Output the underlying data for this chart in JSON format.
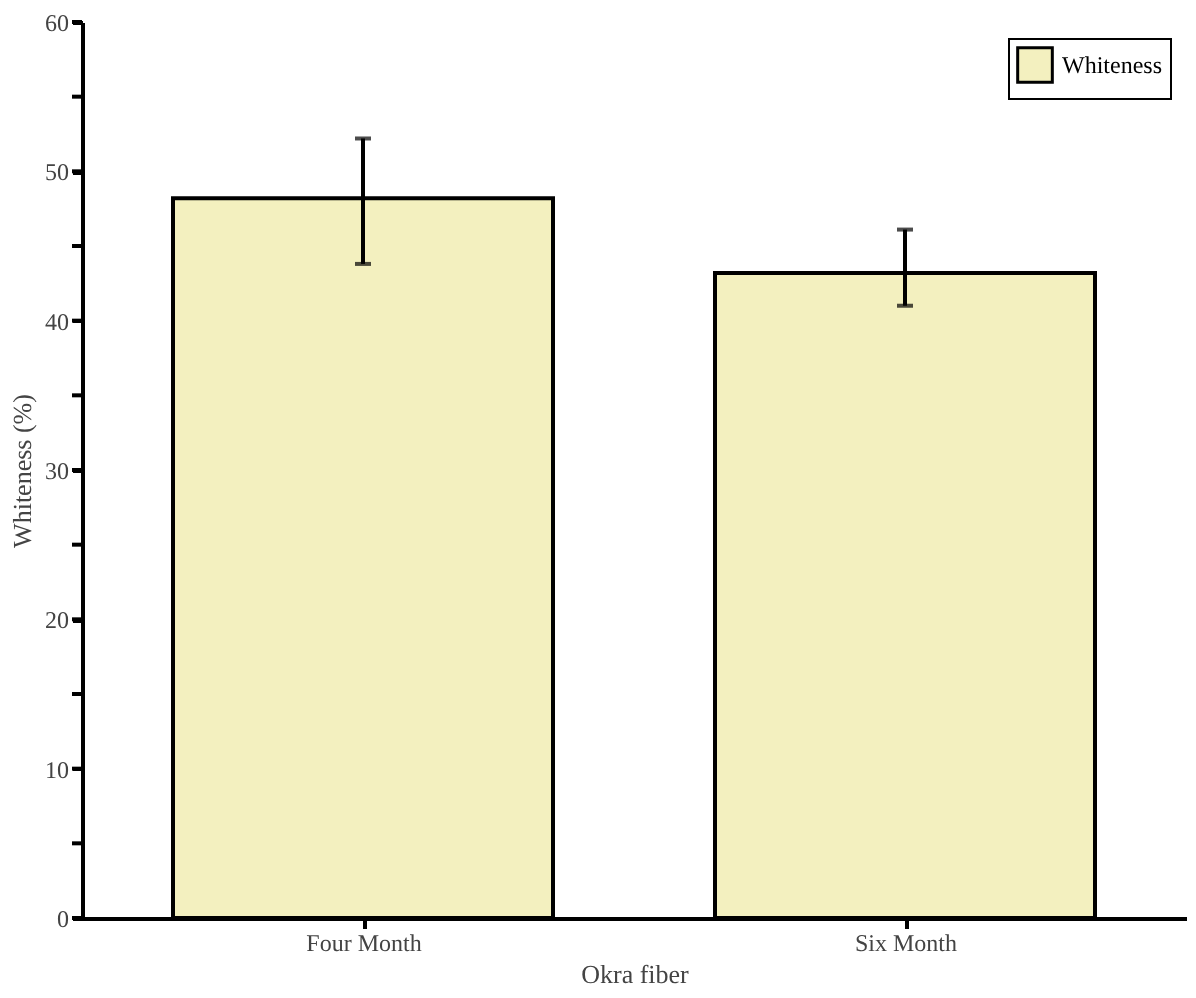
{
  "chart_data": {
    "type": "bar",
    "xlabel": "Okra fiber",
    "ylabel": "Whiteness (%)",
    "categories": [
      "Four Month",
      "Six Month"
    ],
    "series": [
      {
        "name": "Whiteness",
        "color": "#f3f0bf",
        "values": [
          48.2,
          43.2
        ],
        "errors": [
          [
            43.8,
            52.2
          ],
          [
            41.0,
            46.1
          ]
        ]
      }
    ],
    "ylim": [
      0,
      60
    ],
    "yticks": [
      0,
      {
        "value": 5,
        "label": null
      },
      10,
      {
        "value": 15,
        "label": null
      },
      20,
      {
        "value": 25,
        "label": null
      },
      30,
      {
        "value": 35,
        "label": null
      },
      40,
      {
        "value": 45,
        "label": null
      },
      50,
      {
        "value": 55,
        "label": null
      },
      60
    ],
    "grid": false,
    "legend": "top right"
  }
}
